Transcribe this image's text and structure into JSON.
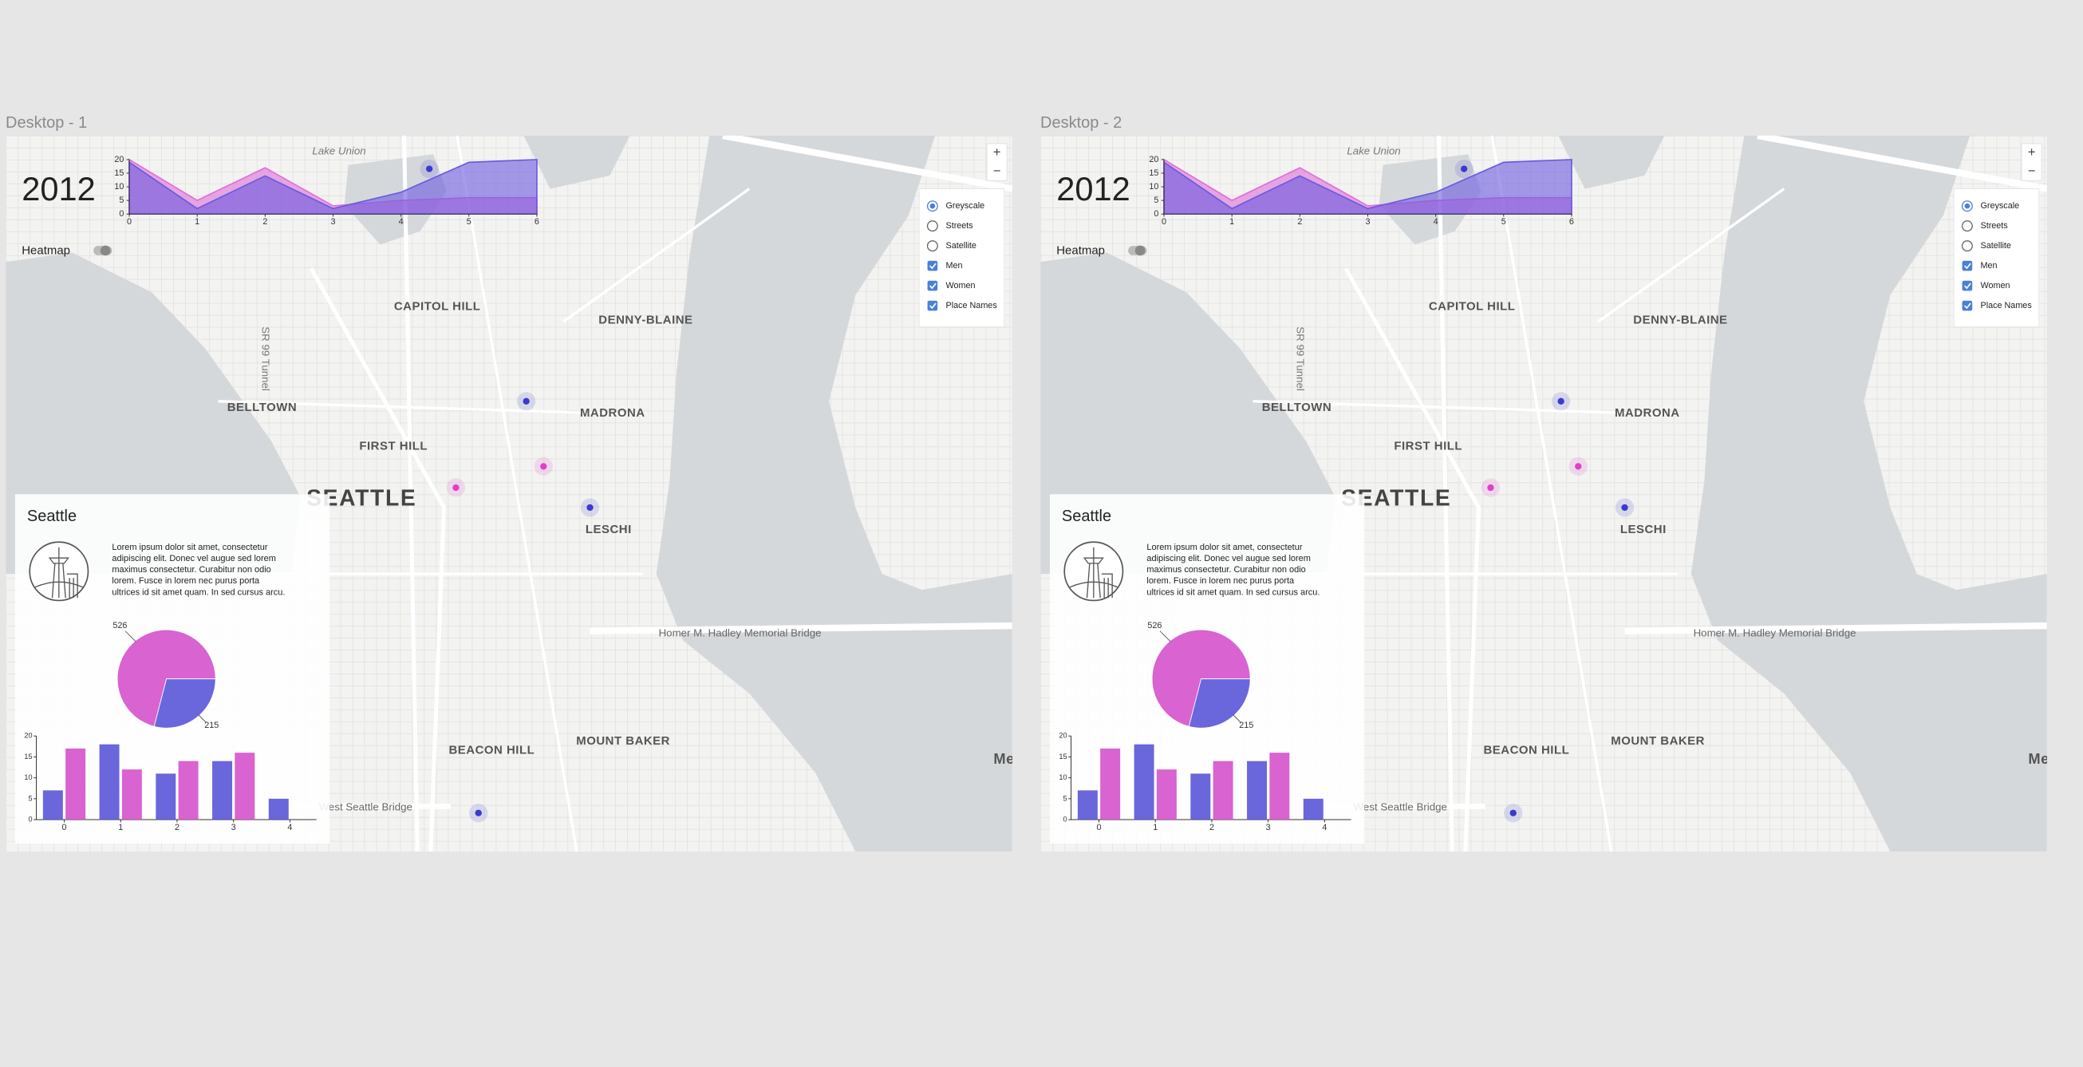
{
  "frames": [
    {
      "name": "Desktop - 1",
      "year": "2012",
      "heatmap_label": "Heatmap",
      "zoom": [
        "+",
        "−"
      ],
      "base_layers": [
        "Greyscale",
        "Streets",
        "Satellite"
      ],
      "selected_layer": 0,
      "overlays": [
        "Men",
        "Women",
        "Place Names"
      ],
      "overlays_checked": [
        true,
        true,
        true
      ],
      "place_names": [
        "Lake Union",
        "CAPITOL HILL",
        "DENNY-BLAINE",
        "BELLTOWN",
        "MADRONA",
        "FIRST HILL",
        "SEATTLE",
        "LESCHI",
        "Homer M. Hadley Memorial Bridge",
        "MOUNT BAKER",
        "BEACON HILL",
        "West Seattle Bridge",
        "SR 99 Tunnel",
        "Merc"
      ],
      "timeline_chart": {
        "type": "area",
        "x": [
          0,
          1,
          2,
          3,
          4,
          5,
          6
        ],
        "xlim": [
          0,
          6
        ],
        "xticks": [
          0,
          1,
          2,
          3,
          4,
          5,
          6
        ],
        "ylim": [
          0,
          20
        ],
        "yticks": [
          0,
          5,
          10,
          15,
          20
        ],
        "series": [
          {
            "color": "#e070d8",
            "values": [
              20,
              5,
              17,
              3,
              5,
              6,
              6
            ]
          },
          {
            "color": "#6a5ae0",
            "values": [
              19,
              2,
              14,
              2,
              8,
              19,
              20
            ]
          }
        ]
      },
      "info_panel": {
        "title": "Seattle",
        "text_lines": [
          "Lorem ipsum dolor sit amet, consectetur",
          "adipiscing elit. Donec vel augue sed lorem",
          "maximus consectetur. Curabitur non odio",
          "lorem. Fusce in lorem nec purus porta",
          "ultrices id sit amet quam. In sed cursus arcu."
        ],
        "pie_chart": {
          "type": "pie",
          "values": [
            526,
            215
          ],
          "colors": [
            "#d452cc",
            "#5a55d8"
          ]
        },
        "bar_chart": {
          "type": "bar",
          "categories": [
            "0",
            "1",
            "2",
            "3",
            "4"
          ],
          "ylim": [
            0,
            20
          ],
          "yticks": [
            0,
            5,
            10,
            15,
            20
          ],
          "series": [
            {
              "color": "#5a55d8",
              "values": [
                7,
                18,
                11,
                14,
                5
              ]
            },
            {
              "color": "#d452cc",
              "values": [
                17,
                12,
                14,
                16,
                null
              ]
            }
          ]
        }
      }
    },
    {
      "name": "Desktop - 2",
      "year": "2012",
      "heatmap_label": "Heatmap",
      "zoom": [
        "+",
        "−"
      ],
      "base_layers": [
        "Greyscale",
        "Streets",
        "Satellite"
      ],
      "selected_layer": 0,
      "overlays": [
        "Men",
        "Women",
        "Place Names"
      ],
      "overlays_checked": [
        true,
        true,
        true
      ],
      "place_names": [
        "Lake Union",
        "CAPITOL HILL",
        "DENNY-BLAINE",
        "BELLTOWN",
        "MADRONA",
        "FIRST HILL",
        "SEATTLE",
        "LESCHI",
        "Homer M. Hadley Memorial Bridge",
        "MOUNT BAKER",
        "BEACON HILL",
        "West Seattle Bridge",
        "SR 99 Tunnel",
        "Merc"
      ],
      "timeline_chart": {
        "type": "area",
        "x": [
          0,
          1,
          2,
          3,
          4,
          5,
          6
        ],
        "xlim": [
          0,
          6
        ],
        "xticks": [
          0,
          1,
          2,
          3,
          4,
          5,
          6
        ],
        "ylim": [
          0,
          20
        ],
        "yticks": [
          0,
          5,
          10,
          15,
          20
        ],
        "series": [
          {
            "color": "#e070d8",
            "values": [
              20,
              5,
              17,
              3,
              5,
              6,
              6
            ]
          },
          {
            "color": "#6a5ae0",
            "values": [
              19,
              2,
              14,
              2,
              8,
              19,
              20
            ]
          }
        ]
      },
      "info_panel": {
        "title": "Seattle",
        "text_lines": [
          "Lorem ipsum dolor sit amet, consectetur",
          "adipiscing elit. Donec vel augue sed lorem",
          "maximus consectetur. Curabitur non odio",
          "lorem. Fusce in lorem nec purus porta",
          "ultrices id sit amet quam. In sed cursus arcu."
        ],
        "pie_chart": {
          "type": "pie",
          "values": [
            526,
            215
          ],
          "colors": [
            "#d452cc",
            "#5a55d8"
          ]
        },
        "bar_chart": {
          "type": "bar",
          "categories": [
            "0",
            "1",
            "2",
            "3",
            "4"
          ],
          "ylim": [
            0,
            20
          ],
          "yticks": [
            0,
            5,
            10,
            15,
            20
          ],
          "series": [
            {
              "color": "#5a55d8",
              "values": [
                7,
                18,
                11,
                14,
                5
              ]
            },
            {
              "color": "#d452cc",
              "values": [
                17,
                12,
                14,
                16,
                null
              ]
            }
          ]
        }
      }
    }
  ]
}
